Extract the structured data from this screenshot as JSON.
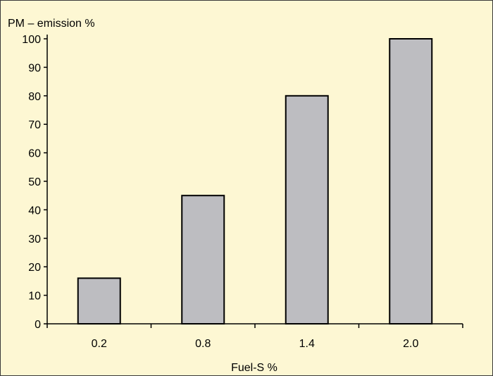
{
  "colors": {
    "background": "#fdf7d3",
    "bar_fill": "#bdbdc1",
    "bar_stroke": "#000000",
    "axis": "#000000",
    "frame": "#3a3a3a"
  },
  "chart_data": {
    "type": "bar",
    "categories": [
      "0.2",
      "0.8",
      "1.4",
      "2.0"
    ],
    "values": [
      16,
      45,
      80,
      100
    ],
    "title": "",
    "xlabel": "Fuel-S %",
    "ylabel": "PM – emission %",
    "ylim": [
      0,
      100
    ],
    "yticks": [
      0,
      10,
      20,
      30,
      40,
      50,
      60,
      70,
      80,
      90,
      100
    ],
    "grid": false,
    "legend": "none"
  }
}
